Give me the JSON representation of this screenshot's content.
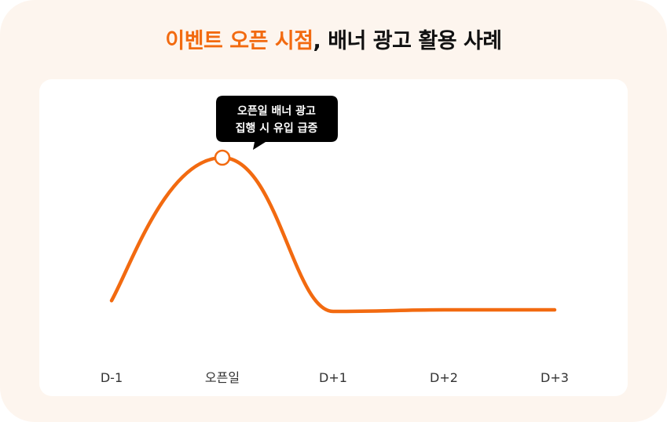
{
  "title": {
    "highlight": "이벤트 오픈 시점",
    "rest": ", 배너 광고 활용 사례"
  },
  "colors": {
    "accent": "#f26a10",
    "background": "#fdf5ee",
    "card": "#ffffff",
    "tooltip": "#000000"
  },
  "chart_data": {
    "type": "line",
    "title": "이벤트 오픈 시점, 배너 광고 활용 사례",
    "categories": [
      "D-1",
      "오픈일",
      "D+1",
      "D+2",
      "D+3"
    ],
    "series": [
      {
        "values": [
          0.07,
          1.0,
          0.0,
          0.01,
          0.01
        ]
      }
    ],
    "y_axis_shown": false,
    "grid": false,
    "annotation": {
      "category": "오픈일",
      "lines": [
        "오픈일 배너 광고",
        "집행 시 유입 급증"
      ]
    }
  }
}
